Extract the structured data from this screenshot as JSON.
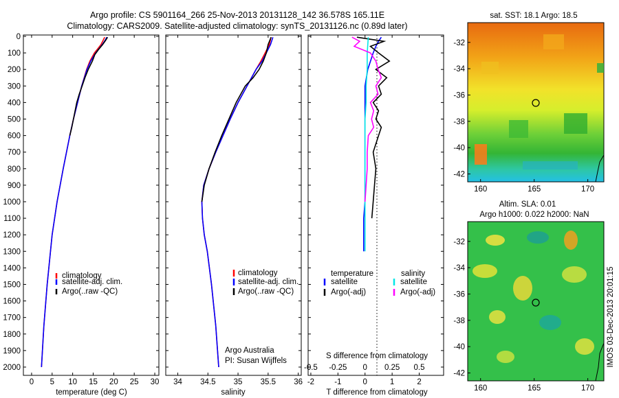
{
  "header": {
    "title_line1": "Argo profile: CS 5901164_266 25-Nov-2013 20131128_142 36.578S 165.11E",
    "title_line2": "Climatology: CARS2009. Satellite-adjusted climatology: synTS_20131126.nc (0.89d later)"
  },
  "chart_data": [
    {
      "type": "line",
      "xlabel": "temperature (deg C)",
      "xlim": [
        -2,
        31
      ],
      "x_ticks": [
        0,
        5,
        10,
        15,
        20,
        25,
        30
      ],
      "ylim": [
        2050,
        0
      ],
      "y_ticks": [
        0,
        100,
        200,
        300,
        400,
        500,
        600,
        700,
        800,
        900,
        1000,
        1100,
        1200,
        1300,
        1400,
        1500,
        1600,
        1700,
        1800,
        1900,
        2000
      ],
      "legend": [
        "climatology",
        "satellite-adj. clim.",
        "Argo(..raw -QC)"
      ],
      "legend_position": "lower-center",
      "series": [
        {
          "name": "climatology",
          "color": "#ff0000",
          "depth": [
            5,
            20,
            50,
            75,
            100,
            150,
            200,
            300,
            400,
            500,
            600,
            700,
            800,
            1000,
            1200,
            1500,
            1750,
            2000
          ],
          "values": [
            17.8,
            17.5,
            16.9,
            16.1,
            15.3,
            14.2,
            13.4,
            12.2,
            11.2,
            10.2,
            9.3,
            8.5,
            7.7,
            6.2,
            5.0,
            3.8,
            3.0,
            2.4
          ]
        },
        {
          "name": "satellite-adj. clim.",
          "color": "#0000ff",
          "depth": [
            5,
            20,
            50,
            75,
            100,
            150,
            200,
            300,
            400,
            500,
            600,
            700,
            800,
            1000,
            1200,
            1500,
            1750,
            2000
          ],
          "values": [
            18.3,
            18.0,
            17.2,
            16.4,
            15.6,
            14.4,
            13.5,
            12.2,
            11.2,
            10.2,
            9.3,
            8.5,
            7.7,
            6.2,
            5.0,
            3.8,
            3.0,
            2.4
          ]
        },
        {
          "name": "Argo(..raw -QC)",
          "color": "#000000",
          "depth": [
            5,
            25,
            50,
            80,
            110,
            150,
            200,
            250,
            300,
            350,
            400,
            450,
            500,
            550,
            600
          ],
          "values": [
            18.5,
            18.0,
            17.3,
            16.3,
            15.4,
            14.8,
            13.8,
            13.0,
            12.3,
            11.6,
            11.0,
            10.6,
            10.2,
            9.8,
            9.3
          ]
        }
      ]
    },
    {
      "type": "line",
      "xlabel": "salinity",
      "xlim": [
        33.8,
        36.05
      ],
      "x_ticks": [
        34,
        34.5,
        35,
        35.5,
        36
      ],
      "ylim": [
        2050,
        0
      ],
      "legend": [
        "climatology",
        "satellite-adj. clim.",
        "Argo(..raw -QC)"
      ],
      "legend_position": "lower-center",
      "annotation": [
        "Argo Australia",
        "PI: Susan Wijffels"
      ],
      "series": [
        {
          "name": "climatology",
          "color": "#ff0000",
          "depth": [
            5,
            50,
            100,
            150,
            200,
            300,
            400,
            500,
            600,
            700,
            800,
            900,
            1000,
            1100,
            1200,
            1300,
            1500,
            1750,
            2000
          ],
          "values": [
            35.55,
            35.52,
            35.45,
            35.38,
            35.3,
            35.15,
            35.0,
            34.87,
            34.75,
            34.63,
            34.52,
            34.43,
            34.4,
            34.41,
            34.44,
            34.49,
            34.56,
            34.63,
            34.68
          ]
        },
        {
          "name": "satellite-adj. clim.",
          "color": "#0000ff",
          "depth": [
            5,
            50,
            100,
            150,
            200,
            300,
            400,
            500,
            600,
            700,
            800,
            900,
            1000,
            1100,
            1200,
            1300,
            1500,
            1750,
            2000
          ],
          "values": [
            35.58,
            35.54,
            35.47,
            35.4,
            35.3,
            35.15,
            35.0,
            34.87,
            34.75,
            34.63,
            34.52,
            34.43,
            34.4,
            34.41,
            34.44,
            34.49,
            34.56,
            34.63,
            34.68
          ]
        },
        {
          "name": "Argo(..raw -QC)",
          "color": "#000000",
          "depth": [
            5,
            50,
            100,
            150,
            200,
            250,
            300,
            400,
            500,
            600,
            700,
            800,
            900,
            1000
          ],
          "values": [
            35.55,
            35.5,
            35.47,
            35.42,
            35.35,
            35.25,
            35.12,
            34.97,
            34.85,
            34.73,
            34.62,
            34.52,
            34.44,
            34.4
          ]
        }
      ]
    },
    {
      "type": "line",
      "xlabel": "T difference from climatology",
      "xlabel_top": "S difference from climatology",
      "xlim_T": [
        -2.1,
        2.9
      ],
      "x_ticks_T": [
        -2,
        -1,
        0,
        1,
        2
      ],
      "x_ticks_S": [
        -0.5,
        -0.25,
        0,
        0.25,
        0.5
      ],
      "ylim": [
        2050,
        0
      ],
      "legend": [
        "temperature",
        "satellite",
        "Argo(-adj)",
        "salinity",
        "satellite",
        "Argo(-adj)"
      ],
      "legend_position": "lower-center",
      "series": [
        {
          "name": "satellite",
          "quantity": "temperature",
          "color": "#0000ff",
          "depth": [
            5,
            30,
            60,
            100,
            200,
            300,
            400,
            500,
            600,
            700,
            800,
            900,
            1000,
            1100,
            1200,
            1300
          ],
          "values": [
            0.6,
            0.5,
            0.4,
            0.3,
            0.1,
            0.0,
            0.0,
            0.0,
            0.0,
            0.0,
            0.0,
            0.0,
            0.0,
            -0.05,
            -0.05,
            -0.05
          ]
        },
        {
          "name": "Argo(-adj)",
          "quantity": "temperature",
          "color": "#000000",
          "depth": [
            5,
            30,
            60,
            100,
            150,
            200,
            250,
            300,
            350,
            400,
            450,
            500,
            550,
            600,
            700,
            800,
            900,
            1000,
            1100
          ],
          "values": [
            -0.3,
            0.7,
            0.2,
            0.5,
            0.9,
            0.4,
            0.8,
            0.5,
            0.6,
            0.3,
            0.5,
            0.4,
            0.6,
            0.5,
            0.3,
            0.4,
            0.35,
            0.3,
            0.25
          ]
        },
        {
          "name": "satellite",
          "quantity": "salinity",
          "color": "#00e6e6",
          "depth": [
            5,
            100,
            200,
            300,
            400,
            500,
            600,
            700,
            800,
            900,
            1000,
            1100,
            1200,
            1300
          ],
          "values": [
            0.03,
            0.02,
            0.02,
            0.01,
            0.01,
            0.0,
            0.0,
            0.0,
            0.0,
            0.0,
            0.0,
            0.0,
            0.0,
            0.0
          ]
        },
        {
          "name": "Argo(-adj)",
          "quantity": "salinity",
          "color": "#ff00ff",
          "depth": [
            5,
            30,
            60,
            100,
            150,
            200,
            250,
            300,
            350,
            400,
            450,
            500,
            550,
            600,
            700,
            800,
            900,
            1000
          ],
          "values": [
            -0.12,
            -0.05,
            -0.1,
            0.05,
            0.1,
            0.12,
            0.15,
            0.1,
            0.12,
            0.05,
            0.08,
            0.06,
            0.08,
            0.03,
            0.02,
            0.02,
            0.01,
            0.0
          ]
        }
      ]
    },
    {
      "type": "heatmap",
      "title": "sat. SST: 18.1  Argo: 18.5",
      "xlim": [
        158.8,
        171.5
      ],
      "x_ticks": [
        "160",
        "165",
        "170"
      ],
      "ylim": [
        -42.6,
        -30.5
      ],
      "y_ticks": [
        "-32",
        "-34",
        "-36",
        "-38",
        "-40",
        "-42"
      ],
      "marker": {
        "lon": 165.11,
        "lat": -36.578
      }
    },
    {
      "type": "heatmap",
      "title_line1": "Altim. SLA: 0.01",
      "title_line2": "Argo h1000: 0.022 h2000: NaN",
      "xlim": [
        158.8,
        171.5
      ],
      "x_ticks": [
        "160",
        "165",
        "170"
      ],
      "ylim": [
        -42.6,
        -30.5
      ],
      "y_ticks": [
        "-32",
        "-34",
        "-36",
        "-38",
        "-40",
        "-42"
      ],
      "marker": {
        "lon": 165.11,
        "lat": -36.578
      }
    }
  ],
  "footer_stamp": "IMOS 03-Dec-2013 20:01:15"
}
